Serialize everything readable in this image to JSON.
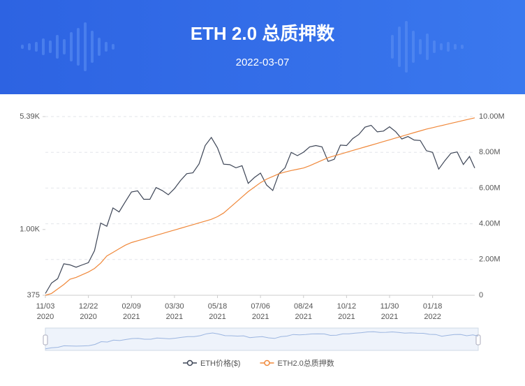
{
  "header": {
    "title": "ETH 2.0 总质押数",
    "date": "2022-03-07"
  },
  "chart_data": {
    "type": "line",
    "x": [
      "2020-11-03",
      "2020-11-10",
      "2020-11-17",
      "2020-11-24",
      "2020-12-01",
      "2020-12-08",
      "2020-12-15",
      "2020-12-22",
      "2020-12-29",
      "2021-01-05",
      "2021-01-12",
      "2021-01-19",
      "2021-01-26",
      "2021-02-02",
      "2021-02-09",
      "2021-02-16",
      "2021-02-23",
      "2021-03-02",
      "2021-03-09",
      "2021-03-16",
      "2021-03-23",
      "2021-03-30",
      "2021-04-06",
      "2021-04-13",
      "2021-04-20",
      "2021-04-27",
      "2021-05-04",
      "2021-05-11",
      "2021-05-18",
      "2021-05-25",
      "2021-06-01",
      "2021-06-08",
      "2021-06-15",
      "2021-06-22",
      "2021-06-29",
      "2021-07-06",
      "2021-07-13",
      "2021-07-20",
      "2021-07-27",
      "2021-08-03",
      "2021-08-10",
      "2021-08-17",
      "2021-08-24",
      "2021-08-31",
      "2021-09-07",
      "2021-09-14",
      "2021-09-21",
      "2021-09-28",
      "2021-10-05",
      "2021-10-12",
      "2021-10-19",
      "2021-10-26",
      "2021-11-02",
      "2021-11-09",
      "2021-11-16",
      "2021-11-23",
      "2021-11-30",
      "2021-12-07",
      "2021-12-14",
      "2021-12-21",
      "2021-12-28",
      "2022-01-04",
      "2022-01-11",
      "2022-01-18",
      "2022-01-25",
      "2022-02-01",
      "2022-02-08",
      "2022-02-15",
      "2022-02-22",
      "2022-03-01",
      "2022-03-07"
    ],
    "xlim": [
      "2020-11-03",
      "2022-03-07"
    ],
    "xticks": [
      {
        "value": "2020-11-03",
        "label": "11/03",
        "year": "2020"
      },
      {
        "value": "2020-12-22",
        "label": "12/22",
        "year": "2020"
      },
      {
        "value": "2021-02-09",
        "label": "02/09",
        "year": "2021"
      },
      {
        "value": "2021-03-30",
        "label": "03/30",
        "year": "2021"
      },
      {
        "value": "2021-05-18",
        "label": "05/18",
        "year": "2021"
      },
      {
        "value": "2021-07-06",
        "label": "07/06",
        "year": "2021"
      },
      {
        "value": "2021-08-24",
        "label": "08/24",
        "year": "2021"
      },
      {
        "value": "2021-10-12",
        "label": "10/12",
        "year": "2021"
      },
      {
        "value": "2021-11-30",
        "label": "11/30",
        "year": "2021"
      },
      {
        "value": "2022-01-18",
        "label": "01/18",
        "year": "2022"
      }
    ],
    "ylim": [
      375,
      5390
    ],
    "log_y": true,
    "yticks": [
      375,
      {
        "value": 1000,
        "label": "1.00K"
      },
      {
        "value": 5390,
        "label": "5.39K"
      }
    ],
    "y2lim": [
      0,
      10000000
    ],
    "y2ticks": [
      0,
      {
        "value": 2000000,
        "label": "2.00M"
      },
      {
        "value": 4000000,
        "label": "4.00M"
      },
      {
        "value": 6000000,
        "label": "6.00M"
      },
      {
        "value": 8000000,
        "label": "8.00M"
      },
      {
        "value": 10000000,
        "label": "10.00M"
      }
    ],
    "grid": true,
    "series": [
      {
        "name": "ETH价格($)",
        "color": "#3d4556",
        "values": [
          385,
          450,
          480,
          600,
          590,
          570,
          590,
          610,
          730,
          1100,
          1050,
          1380,
          1300,
          1510,
          1750,
          1780,
          1570,
          1570,
          1870,
          1790,
          1680,
          1840,
          2080,
          2300,
          2330,
          2660,
          3500,
          3950,
          3380,
          2650,
          2630,
          2510,
          2590,
          1990,
          2170,
          2320,
          1940,
          1790,
          2300,
          2510,
          3160,
          3010,
          3170,
          3430,
          3500,
          3430,
          2760,
          2850,
          3520,
          3500,
          3880,
          4130,
          4600,
          4730,
          4290,
          4340,
          4630,
          4300,
          3860,
          4000,
          3800,
          3770,
          3240,
          3160,
          2460,
          2790,
          3120,
          3180,
          2640,
          2970,
          2500
        ]
      },
      {
        "name": "ETH2.0总质押数",
        "color": "#f0883a",
        "axis": "y2",
        "values": [
          0,
          100000,
          350000,
          600000,
          900000,
          1000000,
          1150000,
          1300000,
          1500000,
          1800000,
          2200000,
          2400000,
          2600000,
          2800000,
          2950000,
          3050000,
          3150000,
          3250000,
          3350000,
          3450000,
          3550000,
          3650000,
          3750000,
          3850000,
          3950000,
          4050000,
          4150000,
          4250000,
          4400000,
          4600000,
          4900000,
          5200000,
          5500000,
          5800000,
          6050000,
          6300000,
          6500000,
          6650000,
          6800000,
          6900000,
          6980000,
          7050000,
          7120000,
          7250000,
          7400000,
          7550000,
          7700000,
          7800000,
          7900000,
          8000000,
          8100000,
          8200000,
          8300000,
          8400000,
          8500000,
          8600000,
          8700000,
          8800000,
          8900000,
          9000000,
          9100000,
          9200000,
          9300000,
          9380000,
          9460000,
          9540000,
          9620000,
          9700000,
          9780000,
          9860000,
          9930000
        ]
      }
    ]
  }
}
